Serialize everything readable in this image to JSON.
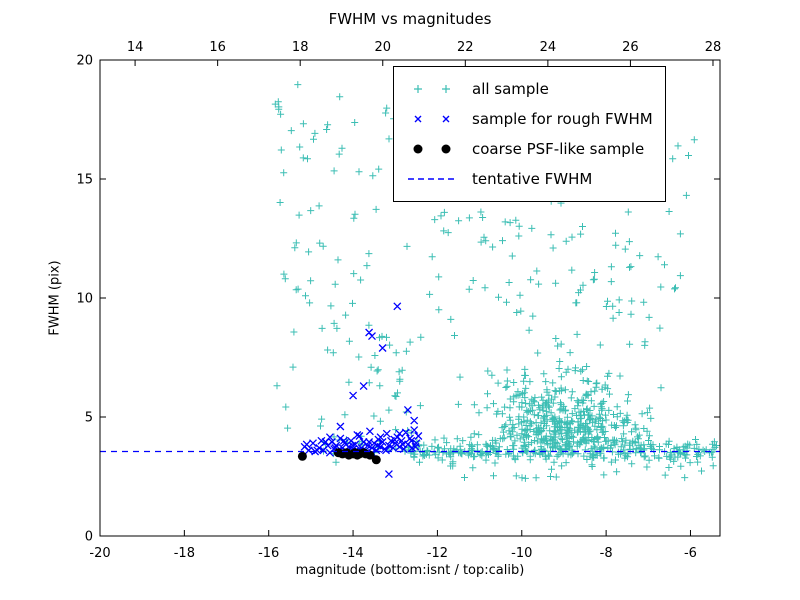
{
  "figure": {
    "background": "#ffffff",
    "axis_color": "#000000"
  },
  "chart_data": {
    "type": "scatter",
    "title": "FWHM vs magnitudes",
    "xlabel": "magnitude (bottom:isnt / top:calib)",
    "ylabel": "FWHM (pix)",
    "grid": false,
    "legend_position": "upper right",
    "x_bottom": {
      "min": -20,
      "max": -5.3,
      "ticks": [
        -20,
        -18,
        -16,
        -14,
        -12,
        -10,
        -8,
        -6
      ]
    },
    "x_top": {
      "min": 13.15,
      "max": 28.17,
      "ticks": [
        14,
        16,
        18,
        20,
        22,
        24,
        26,
        28
      ]
    },
    "y": {
      "min": 0,
      "max": 20,
      "ticks": [
        0,
        5,
        10,
        15,
        20
      ]
    },
    "series": [
      {
        "name": "all sample",
        "marker": "plus",
        "color": "#3cbeb4",
        "size": 3.5,
        "stroke_width": 1,
        "seed": 42,
        "clusters": [
          {
            "count": 320,
            "x": {
              "dist": "uniform",
              "min": -12.7,
              "max": -5.35
            },
            "y": {
              "dist": "normal",
              "mean": 3.6,
              "sd": 0.22,
              "min": 3.0,
              "max": 4.4
            }
          },
          {
            "count": 420,
            "x": {
              "dist": "normal",
              "mean": -9.1,
              "sd": 0.95,
              "min": -12.3,
              "max": -6.7
            },
            "y": {
              "dist": "halfnormal",
              "base": 3.9,
              "sd": 1.4,
              "max": 8.5
            }
          },
          {
            "count": 70,
            "x": {
              "dist": "uniform",
              "min": -12.4,
              "max": -6.3
            },
            "y": {
              "dist": "uniform",
              "min": 8.0,
              "max": 13.5
            }
          },
          {
            "count": 70,
            "x": {
              "dist": "uniform",
              "min": -15.9,
              "max": -5.9
            },
            "y": {
              "dist": "uniform",
              "min": 9.0,
              "max": 19.9
            }
          },
          {
            "count": 60,
            "x": {
              "dist": "uniform",
              "min": -15.9,
              "max": -13.5
            },
            "y": {
              "dist": "uniform",
              "min": 3.8,
              "max": 19.5
            }
          },
          {
            "count": 30,
            "x": {
              "dist": "uniform",
              "min": -11.8,
              "max": -5.4
            },
            "y": {
              "dist": "uniform",
              "min": 2.4,
              "max": 3.15
            }
          },
          {
            "count": 25,
            "x": {
              "dist": "uniform",
              "min": -13.6,
              "max": -12.3
            },
            "y": {
              "dist": "uniform",
              "min": 4.0,
              "max": 8.5
            }
          },
          {
            "count": 25,
            "x": {
              "dist": "normal",
              "mean": -13.6,
              "sd": 0.6,
              "min": -14.7,
              "max": -12.7
            },
            "y": {
              "dist": "normal",
              "mean": 3.7,
              "sd": 0.3,
              "min": 3.1,
              "max": 4.5
            }
          }
        ]
      },
      {
        "name": "sample for rough FWHM",
        "marker": "x",
        "color": "#0000ff",
        "size": 3.5,
        "stroke_width": 1.3,
        "points": [
          [
            -15.15,
            3.75
          ],
          [
            -15.05,
            3.6
          ],
          [
            -14.95,
            3.9
          ],
          [
            -14.9,
            3.55
          ],
          [
            -14.8,
            3.7
          ],
          [
            -14.75,
            4.0
          ],
          [
            -14.7,
            3.6
          ],
          [
            -14.6,
            3.8
          ],
          [
            -14.55,
            3.5
          ],
          [
            -14.5,
            3.95
          ],
          [
            -14.45,
            3.65
          ],
          [
            -14.4,
            3.8
          ],
          [
            -14.35,
            3.6
          ],
          [
            -14.3,
            4.1
          ],
          [
            -14.25,
            3.7
          ],
          [
            -14.2,
            3.9
          ],
          [
            -14.15,
            3.55
          ],
          [
            -14.1,
            3.75
          ],
          [
            -14.05,
            4.0
          ],
          [
            -14.0,
            3.65
          ],
          [
            -13.95,
            3.85
          ],
          [
            -13.9,
            3.6
          ],
          [
            -13.85,
            4.2
          ],
          [
            -13.8,
            3.7
          ],
          [
            -13.75,
            3.95
          ],
          [
            -13.7,
            3.6
          ],
          [
            -13.65,
            3.8
          ],
          [
            -13.6,
            4.4
          ],
          [
            -13.55,
            3.7
          ],
          [
            -13.5,
            3.9
          ],
          [
            -13.45,
            3.6
          ],
          [
            -13.4,
            4.05
          ],
          [
            -13.35,
            3.75
          ],
          [
            -13.3,
            3.95
          ],
          [
            -13.25,
            3.65
          ],
          [
            -13.2,
            4.3
          ],
          [
            -13.15,
            3.8
          ],
          [
            -13.1,
            4.0
          ],
          [
            -13.05,
            3.7
          ],
          [
            -13.0,
            3.9
          ],
          [
            -12.95,
            4.15
          ],
          [
            -12.9,
            3.75
          ],
          [
            -12.85,
            4.0
          ],
          [
            -12.8,
            3.65
          ],
          [
            -12.75,
            4.35
          ],
          [
            -12.7,
            3.85
          ],
          [
            -12.65,
            4.1
          ],
          [
            -12.6,
            3.7
          ],
          [
            -12.55,
            4.45
          ],
          [
            -12.5,
            3.9
          ],
          [
            -12.45,
            4.2
          ],
          [
            -15.1,
            3.85
          ],
          [
            -14.85,
            3.6
          ],
          [
            -14.65,
            3.95
          ],
          [
            -14.42,
            3.7
          ],
          [
            -14.22,
            4.0
          ],
          [
            -14.02,
            3.8
          ],
          [
            -13.82,
            3.55
          ],
          [
            -13.62,
            3.95
          ],
          [
            -13.42,
            3.8
          ],
          [
            -13.22,
            3.6
          ],
          [
            -13.02,
            4.05
          ],
          [
            -12.82,
            3.85
          ],
          [
            -12.62,
            4.0
          ],
          [
            -12.52,
            3.75
          ],
          [
            -14.55,
            4.15
          ],
          [
            -13.9,
            4.25
          ],
          [
            -13.35,
            4.15
          ],
          [
            -12.9,
            4.3
          ],
          [
            -14.15,
            3.5
          ],
          [
            -13.55,
            3.5
          ],
          [
            -13.62,
            8.55
          ],
          [
            -13.55,
            8.4
          ],
          [
            -12.95,
            9.65
          ],
          [
            -13.3,
            7.9
          ],
          [
            -13.75,
            6.3
          ],
          [
            -14.0,
            5.9
          ],
          [
            -12.55,
            4.85
          ],
          [
            -13.15,
            2.6
          ],
          [
            -14.3,
            4.6
          ],
          [
            -12.7,
            5.3
          ]
        ]
      },
      {
        "name": "coarse PSF-like sample",
        "marker": "dot",
        "color": "#000000",
        "size": 4.5,
        "points": [
          [
            -15.2,
            3.35
          ],
          [
            -14.35,
            3.5
          ],
          [
            -14.25,
            3.45
          ],
          [
            -14.15,
            3.5
          ],
          [
            -14.1,
            3.4
          ],
          [
            -14.0,
            3.45
          ],
          [
            -13.95,
            3.5
          ],
          [
            -13.9,
            3.4
          ],
          [
            -13.85,
            3.45
          ],
          [
            -13.75,
            3.5
          ],
          [
            -13.7,
            3.45
          ],
          [
            -13.6,
            3.4
          ],
          [
            -13.45,
            3.2
          ]
        ]
      },
      {
        "name": "tentative FWHM",
        "type": "hline",
        "style": "dashed",
        "color": "#0000ff",
        "y": 3.55
      }
    ]
  }
}
